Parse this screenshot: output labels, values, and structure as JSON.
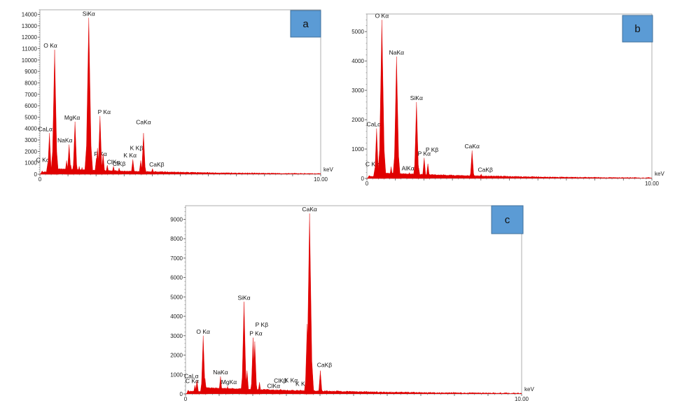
{
  "chart_data": [
    {
      "type": "area",
      "panel_tag": "a",
      "x_unit": "keV",
      "xlim": [
        0,
        10
      ],
      "x_ticks": [
        "0",
        "10.00"
      ],
      "ylim": [
        0,
        14400
      ],
      "y_ticks": [
        0,
        1000,
        2000,
        3000,
        4000,
        5000,
        6000,
        7000,
        8000,
        9000,
        10000,
        11000,
        12000,
        13000,
        14000
      ],
      "color": "#e00000",
      "peaks": [
        {
          "x": 0.08,
          "y": 300
        },
        {
          "x": 0.28,
          "y": 1000,
          "label": "C Kα"
        },
        {
          "x": 0.34,
          "y": 3600,
          "label": "CaLα"
        },
        {
          "x": 0.525,
          "y": 10900,
          "label": "O Kα"
        },
        {
          "x": 0.58,
          "y": 2000
        },
        {
          "x": 0.95,
          "y": 1200
        },
        {
          "x": 1.04,
          "y": 2600,
          "label": "NaKα"
        },
        {
          "x": 1.1,
          "y": 800
        },
        {
          "x": 1.25,
          "y": 4600,
          "label": "MgKα"
        },
        {
          "x": 1.4,
          "y": 700
        },
        {
          "x": 1.5,
          "y": 600
        },
        {
          "x": 1.74,
          "y": 13700,
          "label": "SiKα"
        },
        {
          "x": 1.83,
          "y": 1000
        },
        {
          "x": 2.01,
          "y": 1400,
          "label": "P Kα"
        },
        {
          "x": 2.05,
          "y": 2300
        },
        {
          "x": 2.14,
          "y": 5100,
          "label": "P Kα"
        },
        {
          "x": 2.25,
          "y": 1800
        },
        {
          "x": 2.4,
          "y": 800
        },
        {
          "x": 2.62,
          "y": 700,
          "label": "ClKα"
        },
        {
          "x": 2.82,
          "y": 550,
          "label": "ClKβ"
        },
        {
          "x": 3.31,
          "y": 1300,
          "label": "K Kα"
        },
        {
          "x": 3.59,
          "y": 1200,
          "label": "K Kβ"
        },
        {
          "x": 3.69,
          "y": 3600,
          "label": "CaKα"
        },
        {
          "x": 4.01,
          "y": 500,
          "label": "CaKβ"
        }
      ]
    },
    {
      "type": "area",
      "panel_tag": "b",
      "x_unit": "keV",
      "xlim": [
        0,
        10
      ],
      "x_ticks": [
        "0",
        "10.00"
      ],
      "ylim": [
        0,
        5600
      ],
      "y_ticks": [
        0,
        1000,
        2000,
        3000,
        4000,
        5000
      ],
      "color": "#e00000",
      "peaks": [
        {
          "x": 0.08,
          "y": 100
        },
        {
          "x": 0.28,
          "y": 350,
          "label": "C Kα"
        },
        {
          "x": 0.34,
          "y": 1700,
          "label": "CaLα"
        },
        {
          "x": 0.525,
          "y": 5400,
          "label": "O Kα"
        },
        {
          "x": 0.58,
          "y": 1300
        },
        {
          "x": 0.85,
          "y": 400
        },
        {
          "x": 1.04,
          "y": 4150,
          "label": "NaKα"
        },
        {
          "x": 1.1,
          "y": 900
        },
        {
          "x": 1.49,
          "y": 200,
          "label": "AlKα"
        },
        {
          "x": 1.74,
          "y": 2600,
          "label": "SiKα"
        },
        {
          "x": 1.82,
          "y": 350
        },
        {
          "x": 2.01,
          "y": 700,
          "label": "P Kα"
        },
        {
          "x": 2.14,
          "y": 500,
          "label": "P Kβ"
        },
        {
          "x": 3.69,
          "y": 950,
          "label": "CaKα"
        },
        {
          "x": 4.01,
          "y": 150,
          "label": "CaKβ"
        }
      ]
    },
    {
      "type": "area",
      "panel_tag": "c",
      "x_unit": "keV",
      "xlim": [
        0,
        10
      ],
      "x_ticks": [
        "0",
        "10.00"
      ],
      "ylim": [
        0,
        9700
      ],
      "y_ticks": [
        0,
        1000,
        2000,
        3000,
        4000,
        5000,
        6000,
        7000,
        8000,
        9000
      ],
      "color": "#e00000",
      "peaks": [
        {
          "x": 0.08,
          "y": 200
        },
        {
          "x": 0.28,
          "y": 450,
          "label": "C Kα"
        },
        {
          "x": 0.34,
          "y": 700,
          "label": "CaLα"
        },
        {
          "x": 0.525,
          "y": 3000,
          "label": "O Kα"
        },
        {
          "x": 0.58,
          "y": 800
        },
        {
          "x": 1.04,
          "y": 900,
          "label": "NaKα"
        },
        {
          "x": 1.25,
          "y": 400,
          "label": "MgKα"
        },
        {
          "x": 1.74,
          "y": 4750,
          "label": "SiKα"
        },
        {
          "x": 1.83,
          "y": 1200
        },
        {
          "x": 2.01,
          "y": 2900,
          "label": "P Kα"
        },
        {
          "x": 2.06,
          "y": 2700,
          "label": "P Kβ"
        },
        {
          "x": 2.2,
          "y": 600
        },
        {
          "x": 2.62,
          "y": 200,
          "label": "ClKα"
        },
        {
          "x": 2.82,
          "y": 250,
          "label": "ClKβ"
        },
        {
          "x": 3.31,
          "y": 200,
          "label": "K Kα"
        },
        {
          "x": 3.59,
          "y": 300,
          "label": "K Kβ"
        },
        {
          "x": 3.62,
          "y": 3600
        },
        {
          "x": 3.69,
          "y": 9300,
          "label": "CaKα"
        },
        {
          "x": 3.76,
          "y": 1500
        },
        {
          "x": 4.01,
          "y": 1200,
          "label": "CaKβ"
        }
      ]
    }
  ]
}
